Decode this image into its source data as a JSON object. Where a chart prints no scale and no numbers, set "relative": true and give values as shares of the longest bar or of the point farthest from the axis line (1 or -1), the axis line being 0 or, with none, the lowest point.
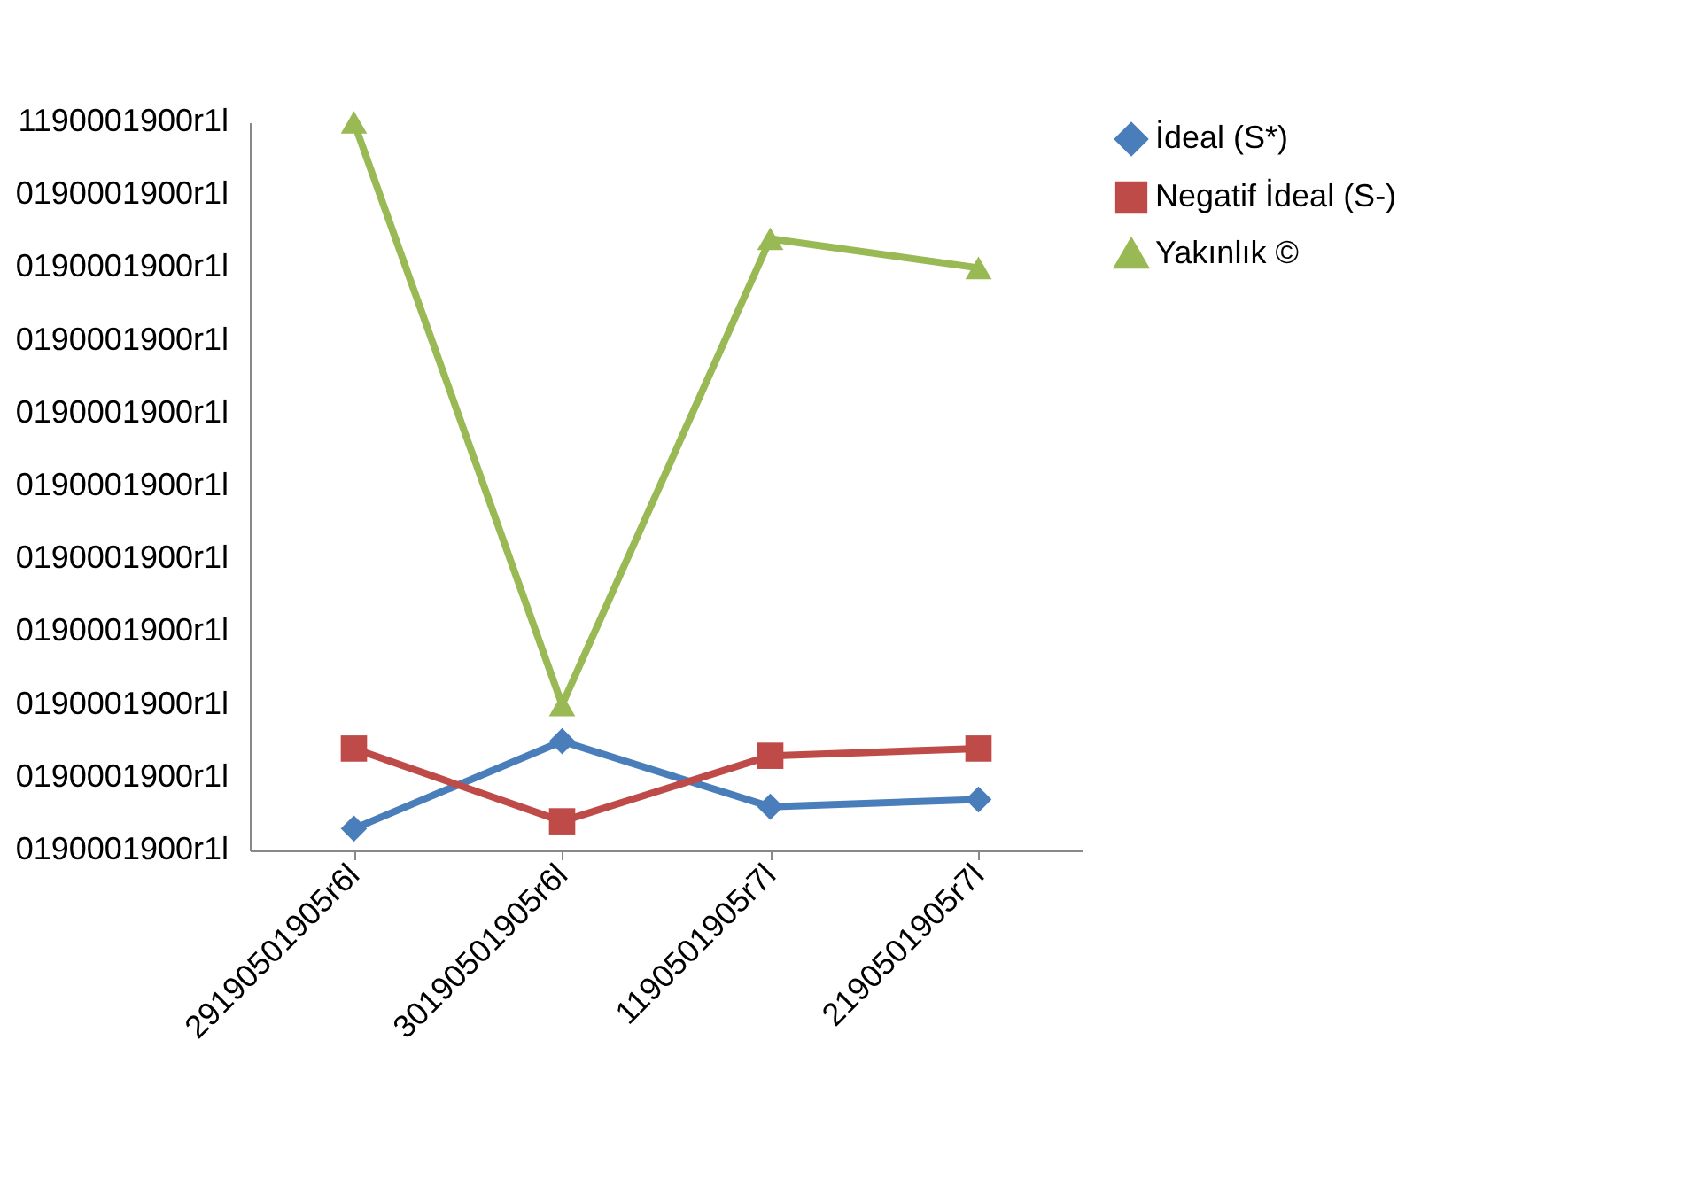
{
  "chart_data": {
    "type": "line",
    "relative": true,
    "categories": [
      "29190501905r6l",
      "30190501905r6l",
      "1190501905r7l",
      "2190501905r7l"
    ],
    "series": [
      {
        "name": "İdeal (S*)",
        "color": "#4a7ebb",
        "marker": "diamond",
        "values": [
          0.03,
          0.15,
          0.06,
          0.07
        ]
      },
      {
        "name": "Negatif İdeal (S-)",
        "color": "#be4b48",
        "marker": "square",
        "values": [
          0.14,
          0.04,
          0.13,
          0.14
        ]
      },
      {
        "name": "Yakınlık ©",
        "color": "#98b954",
        "marker": "triangle",
        "values": [
          1,
          0.2,
          0.84,
          0.8
        ]
      }
    ],
    "annotations": [
      "1190001900r1l",
      "0190001900r1l",
      "0190001900r1l",
      "0190001900r1l",
      "0190001900r1l",
      "0190001900r1l",
      "0190001900r1l",
      "0190001900r1l",
      "0190001900r1l",
      "0190001900r1l",
      "0190001900r1l"
    ],
    "legend": "right",
    "line_style": "solid"
  }
}
